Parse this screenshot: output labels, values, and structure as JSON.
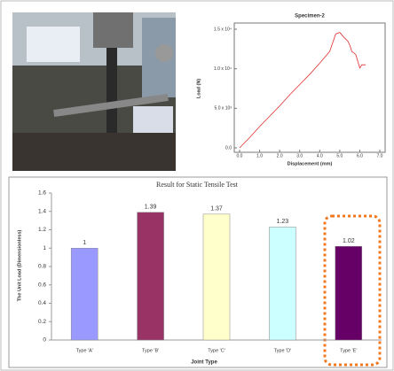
{
  "chart_data": [
    {
      "type": "line",
      "title": "Specimen-2",
      "x_label": "Displacement (mm)",
      "y_label": "Load (N)",
      "x": [
        0,
        0.5,
        1,
        1.5,
        2,
        2.5,
        3,
        3.5,
        4,
        4.5,
        4.8,
        5.0,
        5.2,
        5.4,
        5.5,
        5.6,
        5.8,
        6.0,
        6.1,
        6.3
      ],
      "series": [
        {
          "color": "#e03030",
          "values": [
            0,
            1300,
            2700,
            4000,
            5300,
            6700,
            8000,
            9300,
            10700,
            12200,
            14400,
            14600,
            14000,
            13500,
            13000,
            12200,
            11800,
            10100,
            10500,
            10500
          ]
        }
      ],
      "xlim": [
        0,
        7
      ],
      "ylim": [
        0,
        15000
      ],
      "xticks": [
        {
          "value": 0,
          "label": "0.0"
        },
        {
          "value": 1,
          "label": "1.0"
        },
        {
          "value": 2,
          "label": "2.0"
        },
        {
          "value": 3,
          "label": "3.0"
        },
        {
          "value": 4,
          "label": "4.0"
        },
        {
          "value": 5,
          "label": "5.0"
        },
        {
          "value": 6,
          "label": "6.0"
        },
        {
          "value": 7,
          "label": "7.0"
        }
      ],
      "yticks": [
        {
          "value": 0,
          "label": "0.0"
        },
        {
          "value": 5000,
          "label": "5.0 x 10³"
        },
        {
          "value": 10000,
          "label": "1.0 x 10⁴"
        },
        {
          "value": 15000,
          "label": "1.5 x 10⁴"
        }
      ]
    },
    {
      "type": "bar",
      "title": "Result for Static Tensile Test",
      "x_label": "Joint Type",
      "y_label": "The Unit Load (Dimensionless)",
      "categories": [
        "Type 'A'",
        "Type 'B'",
        "Type 'C'",
        "Type 'D'",
        "Type 'E'"
      ],
      "values": [
        1,
        1.39,
        1.37,
        1.23,
        1.02
      ],
      "colors": [
        "#9999ff",
        "#993366",
        "#ffffcc",
        "#ccffff",
        "#660066"
      ],
      "ylim": [
        0,
        1.6
      ],
      "yticks": [
        0,
        0.2,
        0.4,
        0.6,
        0.8,
        1,
        1.2,
        1.4,
        1.6
      ],
      "grid": false
    }
  ]
}
